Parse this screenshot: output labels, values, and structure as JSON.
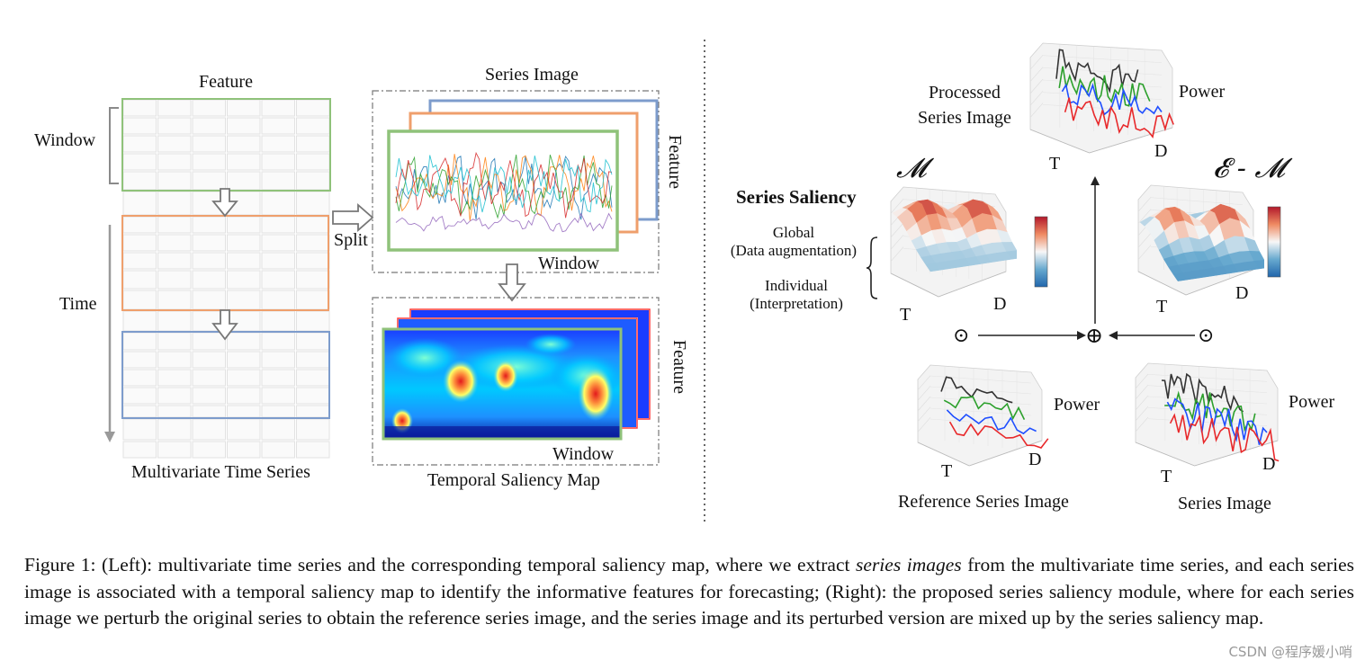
{
  "left": {
    "feature_label": "Feature",
    "window_label": "Window",
    "time_label": "Time",
    "mts_label": "Multivariate Time Series",
    "series_image_title": "Series Image",
    "split_label": "Split",
    "feature_vertical_top": "Feature",
    "window_label_image": "Window",
    "feature_vertical_bottom": "Feature",
    "window_label_map": "Window",
    "saliency_map_title": "Temporal Saliency Map"
  },
  "right": {
    "processed_label": "Processed\nSeries Image",
    "power_top": "Power",
    "t_top": "T",
    "d_top": "D",
    "m_symbol": "𝓜",
    "em_symbol": "𝓔 - 𝓜",
    "saliency_title": "Series Saliency",
    "global_label": "Global\n(Data augmentation)",
    "individual_label": "Individual\n(Interpretation)",
    "t_mid_left": "T",
    "d_mid_left": "D",
    "t_mid_right": "T",
    "d_mid_right": "D",
    "odot_left": "⊙",
    "oplus": "⊕",
    "odot_right": "⊙",
    "power_ref": "Power",
    "t_ref": "T",
    "d_ref": "D",
    "ref_label": "Reference Series Image",
    "power_series": "Power",
    "t_series": "T",
    "d_series": "D",
    "series_label": "Series Image"
  },
  "caption": {
    "part1": "Figure 1: (Left): multivariate time series and the corresponding temporal saliency map, where we extract ",
    "italic": "series images",
    "part2": " from the multivariate time series, and each series image is associated with a temporal saliency map to identify the informative features for forecasting; (Right): the proposed series saliency module, where for each series image we perturb the original series to obtain the reference series image, and the series image and its perturbed version are mixed up by the series saliency map."
  },
  "watermark": "CSDN @程序媛小哨",
  "colors": {
    "green": "#8fc27a",
    "orange": "#ef9f6c",
    "blue": "#7d9ccc",
    "gray_grid": "#dcdcdc",
    "jet_red": "#d7191c",
    "jet_blue": "#2b3fa8"
  }
}
